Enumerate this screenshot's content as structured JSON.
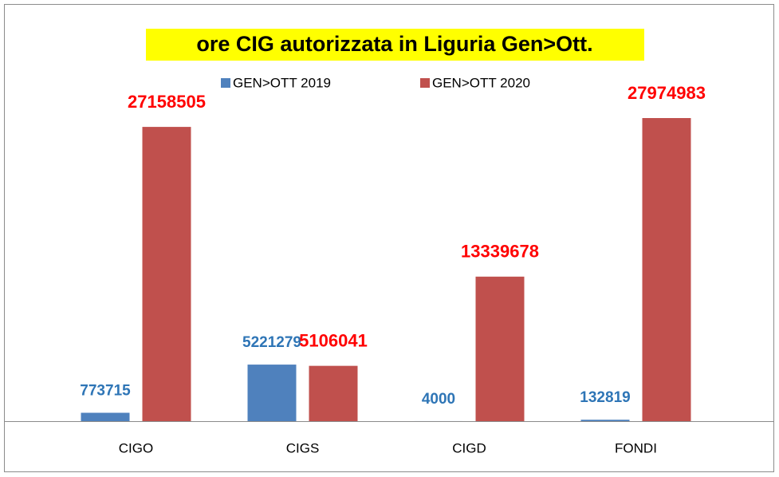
{
  "chart_data": {
    "type": "bar",
    "title": "ore CIG autorizzata in Liguria Gen>Ott.",
    "categories": [
      "CIGO",
      "CIGS",
      "CIGD",
      "FONDI"
    ],
    "series": [
      {
        "name": "GEN>OTT 2019",
        "color": "#4f81bd",
        "label_color": "#2e75b6",
        "values": [
          773715,
          5221279,
          4000,
          132819
        ]
      },
      {
        "name": "GEN>OTT 2020",
        "color": "#c0504d",
        "label_color": "#ff0000",
        "values": [
          27158505,
          5106041,
          13339678,
          27974983
        ]
      }
    ],
    "legend": "top"
  }
}
